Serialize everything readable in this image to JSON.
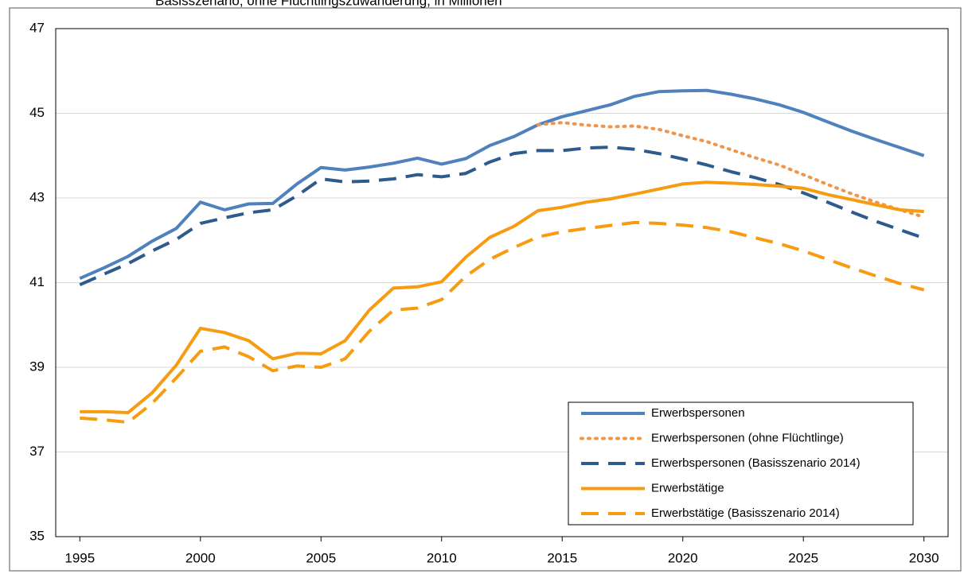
{
  "chart_data": {
    "type": "line",
    "subtitle": "Basisszenario, ohne Flüchtlingszuwanderung, in Millionen",
    "x": [
      1995,
      1996,
      1997,
      1998,
      1999,
      2000,
      2001,
      2002,
      2003,
      2004,
      2005,
      2006,
      2007,
      2008,
      2009,
      2010,
      2011,
      2012,
      2013,
      2014,
      2015,
      2016,
      2017,
      2018,
      2019,
      2020,
      2021,
      2022,
      2023,
      2024,
      2025,
      2026,
      2027,
      2028,
      2029,
      2030
    ],
    "xlim": [
      1994,
      2031
    ],
    "xticks": [
      1995,
      2000,
      2005,
      2010,
      2015,
      2020,
      2025,
      2030
    ],
    "ylim": [
      35,
      47
    ],
    "yticks": [
      35,
      37,
      39,
      41,
      43,
      45,
      47
    ],
    "grid": true,
    "legend": "lower right",
    "series": [
      {
        "name": "Erwerbspersonen",
        "color": "#4f81bd",
        "dash": "solid",
        "values": [
          41.1,
          41.35,
          41.62,
          41.98,
          42.28,
          42.9,
          42.72,
          42.86,
          42.87,
          43.33,
          43.72,
          43.66,
          43.73,
          43.82,
          43.94,
          43.8,
          43.93,
          44.24,
          44.45,
          44.73,
          44.92,
          45.06,
          45.2,
          45.4,
          45.51,
          45.53,
          45.54,
          45.45,
          45.34,
          45.2,
          45.02,
          44.8,
          44.58,
          44.38,
          44.19,
          44.0
        ]
      },
      {
        "name": "Erwerbspersonen (ohne Flüchtlinge)",
        "color": "#f0954a",
        "dash": "dotted",
        "values": [
          null,
          null,
          null,
          null,
          null,
          null,
          null,
          null,
          null,
          null,
          null,
          null,
          null,
          null,
          null,
          null,
          null,
          null,
          null,
          44.73,
          44.78,
          44.72,
          44.68,
          44.7,
          44.62,
          44.47,
          44.33,
          44.14,
          43.95,
          43.78,
          43.55,
          43.32,
          43.1,
          42.9,
          42.72,
          42.55
        ]
      },
      {
        "name": "Erwerbspersonen (Basisszenario 2014)",
        "color": "#2e5a8c",
        "dash": "dashed",
        "values": [
          40.95,
          41.2,
          41.45,
          41.75,
          42.02,
          42.4,
          42.53,
          42.65,
          42.72,
          43.05,
          43.45,
          43.38,
          43.4,
          43.45,
          43.55,
          43.5,
          43.58,
          43.85,
          44.05,
          44.12,
          44.12,
          44.18,
          44.2,
          44.15,
          44.05,
          43.92,
          43.78,
          43.62,
          43.48,
          43.32,
          43.12,
          42.9,
          42.67,
          42.45,
          42.25,
          42.05
        ]
      },
      {
        "name": "Erwerbstätige",
        "color": "#f79b10",
        "dash": "solid",
        "values": [
          37.95,
          37.95,
          37.93,
          38.4,
          39.05,
          39.92,
          39.82,
          39.63,
          39.2,
          39.33,
          39.32,
          39.63,
          40.35,
          40.87,
          40.9,
          41.02,
          41.6,
          42.07,
          42.33,
          42.7,
          42.78,
          42.9,
          42.98,
          43.09,
          43.21,
          43.33,
          43.37,
          43.35,
          43.32,
          43.28,
          43.23,
          43.08,
          42.96,
          42.84,
          42.72,
          42.68
        ]
      },
      {
        "name": "Erwerbstätige (Basisszenario 2014)",
        "color": "#f79b10",
        "dash": "dashed",
        "values": [
          37.8,
          37.76,
          37.7,
          38.15,
          38.75,
          39.38,
          39.48,
          39.25,
          38.92,
          39.03,
          39.0,
          39.2,
          39.85,
          40.35,
          40.4,
          40.6,
          41.15,
          41.55,
          41.83,
          42.08,
          42.2,
          42.28,
          42.35,
          42.42,
          42.4,
          42.36,
          42.3,
          42.2,
          42.06,
          41.92,
          41.75,
          41.55,
          41.35,
          41.16,
          40.98,
          40.83
        ]
      }
    ]
  }
}
